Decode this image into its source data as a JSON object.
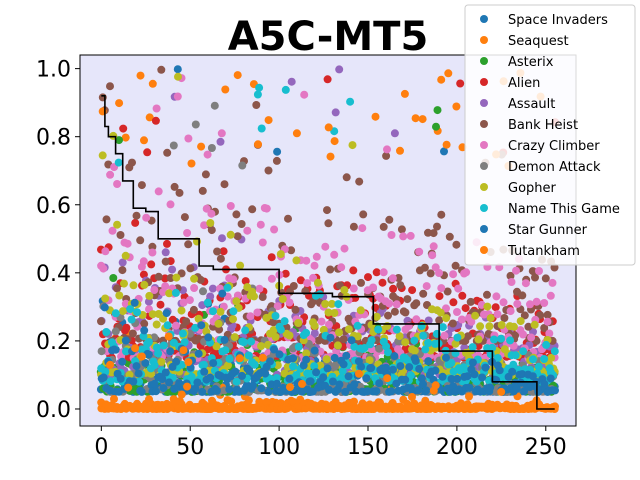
{
  "chart_data": {
    "type": "scatter",
    "title": "A5C-MT5",
    "xlabel": "",
    "ylabel": "",
    "xlim": [
      -12,
      267
    ],
    "ylim": [
      -0.05,
      1.04
    ],
    "xticks": [
      0,
      50,
      100,
      150,
      200,
      250
    ],
    "yticks": [
      0.0,
      0.2,
      0.4,
      0.6,
      0.8,
      1.0
    ],
    "x_tick_labels": [
      "0",
      "50",
      "100",
      "150",
      "200",
      "250"
    ],
    "y_tick_labels": [
      "0.0",
      "0.2",
      "0.4",
      "0.6",
      "0.8",
      "1.0"
    ],
    "grid": false,
    "legend_position": "upper-right",
    "n_points": 256,
    "series": [
      {
        "name": "Space Invaders",
        "color": "#1f77b4",
        "base": 0.05,
        "spread": 0.08,
        "high_freq": 0.03,
        "seed": 11
      },
      {
        "name": "Seaquest",
        "color": "#ff7f0e",
        "base": 0.0,
        "spread": 0.01,
        "high_freq": 0.08,
        "seed": 23
      },
      {
        "name": "Asterix",
        "color": "#2ca02c",
        "base": 0.05,
        "spread": 0.1,
        "high_freq": 0.02,
        "seed": 37
      },
      {
        "name": "Alien",
        "color": "#d62728",
        "base": 0.15,
        "spread": 0.2,
        "high_freq": 0.05,
        "seed": 41
      },
      {
        "name": "Assault",
        "color": "#9467bd",
        "base": 0.1,
        "spread": 0.2,
        "high_freq": 0.05,
        "seed": 53
      },
      {
        "name": "Bank Heist",
        "color": "#8c564b",
        "base": 0.2,
        "spread": 0.35,
        "high_freq": 0.08,
        "seed": 67
      },
      {
        "name": "Crazy Climber",
        "color": "#e377c2",
        "base": 0.15,
        "spread": 0.35,
        "high_freq": 0.1,
        "seed": 71
      },
      {
        "name": "Demon Attack",
        "color": "#7f7f7f",
        "base": 0.05,
        "spread": 0.12,
        "high_freq": 0.02,
        "seed": 83
      },
      {
        "name": "Gopher",
        "color": "#bcbd22",
        "base": 0.1,
        "spread": 0.2,
        "high_freq": 0.05,
        "seed": 97
      },
      {
        "name": "Name This Game",
        "color": "#17becf",
        "base": 0.08,
        "spread": 0.15,
        "high_freq": 0.04,
        "seed": 101
      },
      {
        "name": "Star Gunner",
        "color": "#1f77b4",
        "base": 0.05,
        "spread": 0.1,
        "high_freq": 0.02,
        "seed": 113
      },
      {
        "name": "Tutankham",
        "color": "#ff7f0e",
        "base": 0.0,
        "spread": 0.02,
        "high_freq": 0.1,
        "seed": 127
      }
    ],
    "step_line": {
      "color": "#000000",
      "x": [
        0,
        2,
        4,
        8,
        12,
        18,
        25,
        32,
        37,
        45,
        55,
        63,
        72,
        85,
        100,
        104,
        115,
        130,
        145,
        153,
        160,
        175,
        185,
        190,
        200,
        215,
        220,
        225,
        235,
        245,
        250,
        255
      ],
      "y": [
        0.92,
        0.83,
        0.8,
        0.75,
        0.67,
        0.59,
        0.58,
        0.5,
        0.5,
        0.5,
        0.42,
        0.41,
        0.41,
        0.41,
        0.34,
        0.34,
        0.34,
        0.33,
        0.33,
        0.25,
        0.25,
        0.25,
        0.25,
        0.17,
        0.17,
        0.17,
        0.08,
        0.08,
        0.08,
        0.0,
        0.0,
        0.0
      ]
    }
  }
}
